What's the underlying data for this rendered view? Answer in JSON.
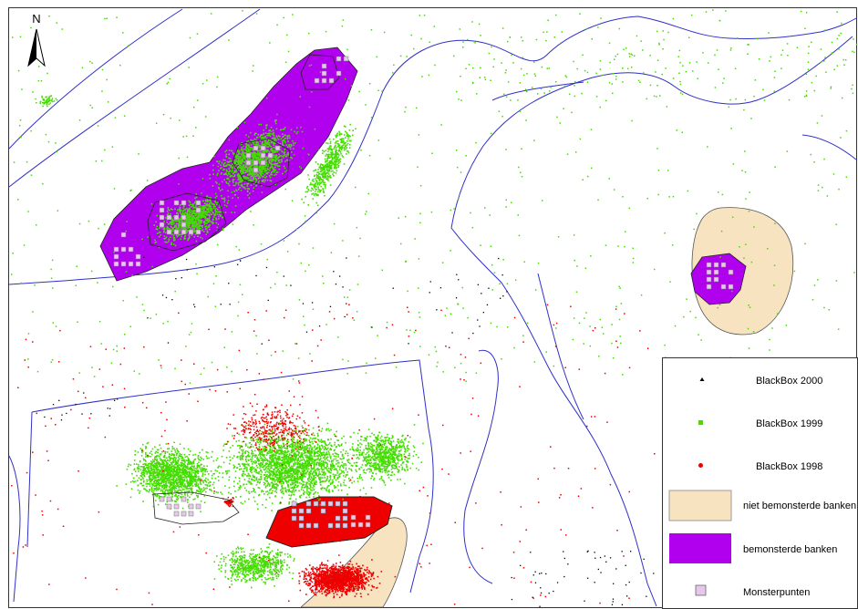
{
  "north_arrow": {
    "label": "N"
  },
  "colors": {
    "blackbox_2000": "#000000",
    "blackbox_1999": "#44dd00",
    "blackbox_1998": "#ee0000",
    "niet_bemonsterde_banken": "#f7e3c0",
    "bemonsterde_banken": "#b000ee",
    "monsterpunten": "#e6c8ea",
    "water_lines": "#3030c8"
  },
  "legend": {
    "items": [
      {
        "label": "BlackBox 2000",
        "symbol": "black-triangle"
      },
      {
        "label": "BlackBox 1999",
        "symbol": "green-square"
      },
      {
        "label": "BlackBox 1998",
        "symbol": "red-dot"
      },
      {
        "label": "niet bemonsterde banken",
        "symbol": "tan-rect"
      },
      {
        "label": "bemonsterde banken",
        "symbol": "purple-rect"
      },
      {
        "label": "Monsterpunten",
        "symbol": "pink-square"
      }
    ]
  }
}
